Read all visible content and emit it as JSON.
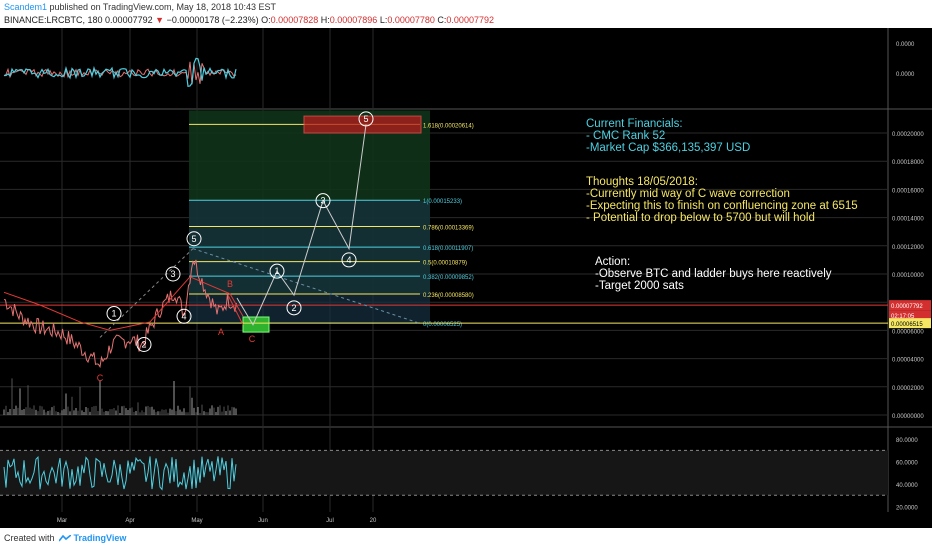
{
  "header": {
    "author": "Scandem1",
    "published": " published on TradingView.com, May 18, 2018 10:43 EST",
    "symbol_line": "BINANCE:LRCBTC, 180",
    "last": "0.00007792",
    "down_arrow": "▼",
    "change": "−0.00000178 (−2.23%)",
    "ohlc": {
      "o_label": "O:",
      "o": "0.00007828",
      "h_label": "H:",
      "h": "0.00007896",
      "l_label": "L:",
      "l": "0.00007780",
      "c_label": "C:",
      "c": "0.00007792"
    }
  },
  "footer": {
    "created_with": "Created with",
    "brand": "TradingView",
    "logo_icon": "tradingview-logo-icon"
  },
  "colors": {
    "background": "#000000",
    "yellow": "#f5e663",
    "cyan": "#4dd0e1",
    "red": "#e53935",
    "green": "#2fb32f",
    "white": "#ffffff",
    "grid": "#2a2a2a",
    "axis_text": "#c8c8c8"
  },
  "annotations": {
    "financials": [
      "Current Financials:",
      "- CMC Rank 52",
      "-Market Cap $366,135,397 USD"
    ],
    "thoughts": [
      "Thoughts 18/05/2018:",
      "-Currently mid way of C wave correction",
      "-Expecting this to finish on confluencing zone at 6515",
      "- Potential to drop below to 5700 but will hold"
    ],
    "action": [
      "Action:",
      "-Observe BTC and ladder buys here reactively",
      "-Target 2000 sats"
    ]
  },
  "chart_data": {
    "type": "line",
    "symbol": "BINANCE:LRCBTC",
    "interval": "180",
    "x_tick_labels": [
      "Mar",
      "Apr",
      "May",
      "Jun",
      "Jul",
      "20"
    ],
    "price_axis": {
      "ticks": [
        "0.00020000",
        "0.00018000",
        "0.00016000",
        "0.00014000",
        "0.00012000",
        "0.00010000",
        "0.00008000",
        "0.00006000",
        "0.00004000",
        "0.00002000",
        "0.00000000"
      ],
      "last_price": "0.00007792",
      "countdown": "02:17:05",
      "target_level": "0.00006515"
    },
    "oscillator_axis_top": {
      "ticks": [
        "0.0000",
        "0.0000"
      ]
    },
    "rsi_axis": {
      "ticks": [
        "80.0000",
        "60.0000",
        "40.0000",
        "20.0000"
      ],
      "upper_band": 70,
      "lower_band": 30
    },
    "fibonacci": [
      {
        "ratio": 1.618,
        "label": "1.618(0.00020614)",
        "price": 0.00020614,
        "color": "#f5e663"
      },
      {
        "ratio": 1,
        "label": "1(0.00015233)",
        "price": 0.00015233,
        "color": "#4dd0e1"
      },
      {
        "ratio": 0.786,
        "label": "0.786(0.00013369)",
        "price": 0.00013369,
        "color": "#f5e663"
      },
      {
        "ratio": 0.618,
        "label": "0.618(0.00011907)",
        "price": 0.00011907,
        "color": "#4dd0e1"
      },
      {
        "ratio": 0.5,
        "label": "0.5(0.00010879)",
        "price": 0.00010879,
        "color": "#f5e663"
      },
      {
        "ratio": 0.382,
        "label": "0.382(0.00009852)",
        "price": 9.852e-05,
        "color": "#4dd0e1"
      },
      {
        "ratio": 0.236,
        "label": "0.236(0.00008580)",
        "price": 8.58e-05,
        "color": "#f5e663"
      },
      {
        "ratio": 0,
        "label": "0(0.00006525)",
        "price": 6.525e-05,
        "color": "#4dd0e1"
      }
    ],
    "wave_labels": {
      "past_impulse": [
        "1",
        "2",
        "3",
        "4",
        "5"
      ],
      "correction": [
        "A",
        "B",
        "C"
      ],
      "earlier_c": "C",
      "projected_impulse": [
        "1",
        "2",
        "3",
        "4",
        "5"
      ]
    }
  }
}
